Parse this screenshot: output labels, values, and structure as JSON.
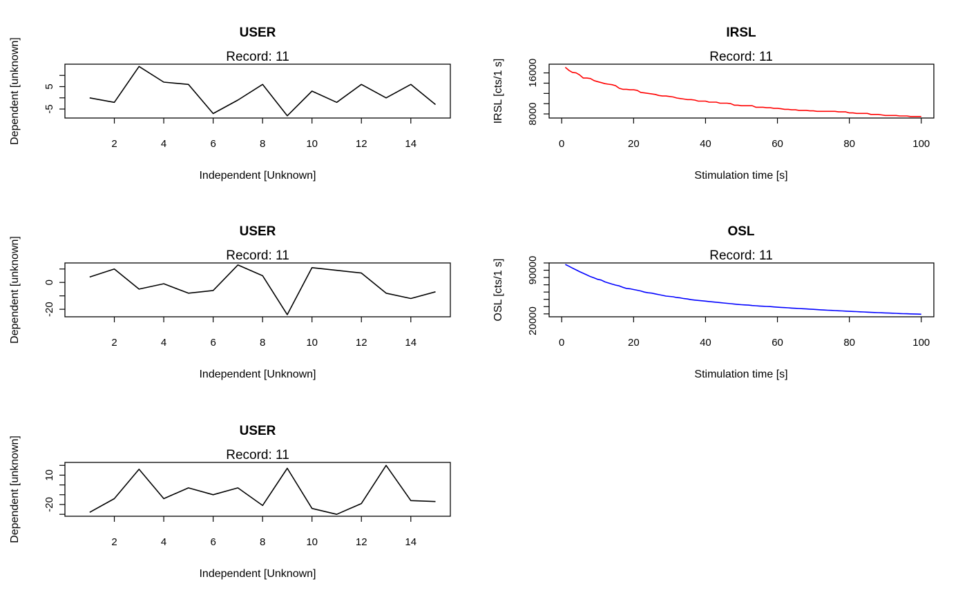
{
  "chart_data": [
    {
      "type": "line",
      "title": "USER",
      "subtitle": "Record: 11",
      "xlabel": "Independent [Unknown]",
      "ylabel": "Dependent [unknown]",
      "color": "#000000",
      "x": [
        1,
        2,
        3,
        4,
        5,
        6,
        7,
        8,
        9,
        10,
        11,
        12,
        13,
        14,
        15
      ],
      "y": [
        0,
        -2,
        14,
        7,
        6,
        -7,
        -1,
        6,
        -8,
        3,
        -2,
        6,
        0,
        6,
        -3
      ],
      "xlim": [
        0,
        15.6
      ],
      "ylim": [
        -9,
        15
      ],
      "xticks": [
        2,
        4,
        6,
        8,
        10,
        12,
        14
      ],
      "xtick_labels": [
        "2",
        "4",
        "6",
        "8",
        "10",
        "12",
        "14"
      ],
      "yticks": [
        -5,
        0,
        5,
        10
      ],
      "ytick_labels": [
        "-5",
        "",
        "5",
        ""
      ]
    },
    {
      "type": "line",
      "title": "IRSL",
      "subtitle": "Record: 11",
      "xlabel": "Stimulation time [s]",
      "ylabel": "IRSL [cts/1 s]",
      "color": "#ff0000",
      "x": [
        1,
        2,
        3,
        4,
        5,
        6,
        7,
        8,
        9,
        10,
        11,
        12,
        13,
        14,
        15,
        16,
        17,
        18,
        19,
        20,
        21,
        22,
        23,
        24,
        25,
        26,
        27,
        28,
        29,
        30,
        31,
        32,
        33,
        34,
        35,
        36,
        37,
        38,
        39,
        40,
        41,
        42,
        43,
        44,
        45,
        46,
        47,
        48,
        49,
        50,
        51,
        52,
        53,
        54,
        55,
        56,
        57,
        58,
        59,
        60,
        61,
        62,
        63,
        64,
        65,
        66,
        67,
        68,
        69,
        70,
        71,
        72,
        73,
        74,
        75,
        76,
        77,
        78,
        79,
        80,
        81,
        82,
        83,
        84,
        85,
        86,
        87,
        88,
        89,
        90,
        91,
        92,
        93,
        94,
        95,
        96,
        97,
        98,
        99,
        100
      ],
      "y": [
        17100,
        16500,
        16100,
        16000,
        15600,
        15000,
        15000,
        14900,
        14500,
        14300,
        14100,
        13900,
        13800,
        13700,
        13500,
        13000,
        12800,
        12800,
        12700,
        12700,
        12600,
        12200,
        12100,
        12000,
        11900,
        11800,
        11600,
        11500,
        11500,
        11400,
        11300,
        11100,
        11000,
        10900,
        10800,
        10800,
        10700,
        10500,
        10500,
        10500,
        10300,
        10300,
        10300,
        10100,
        10100,
        10100,
        10000,
        9700,
        9700,
        9600,
        9600,
        9600,
        9600,
        9300,
        9300,
        9300,
        9200,
        9200,
        9100,
        9100,
        9000,
        8900,
        8900,
        8800,
        8800,
        8700,
        8700,
        8700,
        8600,
        8600,
        8500,
        8500,
        8500,
        8500,
        8500,
        8500,
        8400,
        8400,
        8400,
        8200,
        8200,
        8100,
        8100,
        8100,
        8100,
        7900,
        7900,
        7900,
        7800,
        7700,
        7700,
        7700,
        7700,
        7600,
        7600,
        7600,
        7500,
        7500,
        7500,
        7500
      ],
      "xlim": [
        -3.5,
        103.5
      ],
      "ylim": [
        7200,
        17700
      ],
      "xticks": [
        0,
        20,
        40,
        60,
        80,
        100
      ],
      "xtick_labels": [
        "0",
        "20",
        "40",
        "60",
        "80",
        "100"
      ],
      "yticks": [
        8000,
        10000,
        12000,
        14000,
        16000
      ],
      "ytick_labels": [
        "8000",
        "",
        "",
        "",
        "16000"
      ]
    },
    {
      "type": "line",
      "title": "USER",
      "subtitle": "Record: 11",
      "xlabel": "Independent [Unknown]",
      "ylabel": "Dependent [unknown]",
      "color": "#000000",
      "x": [
        1,
        2,
        3,
        4,
        5,
        6,
        7,
        8,
        9,
        10,
        11,
        12,
        13,
        14,
        15
      ],
      "y": [
        4,
        10,
        -5,
        -1,
        -8,
        -6,
        13,
        5,
        -24,
        11,
        9,
        7,
        -8,
        -12,
        -7
      ],
      "xlim": [
        0,
        15.6
      ],
      "ylim": [
        -25.6,
        14.5
      ],
      "xticks": [
        2,
        4,
        6,
        8,
        10,
        12,
        14
      ],
      "xtick_labels": [
        "2",
        "4",
        "6",
        "8",
        "10",
        "12",
        "14"
      ],
      "yticks": [
        -20,
        -10,
        0,
        10
      ],
      "ytick_labels": [
        "-20",
        "",
        "0",
        ""
      ]
    },
    {
      "type": "line",
      "title": "OSL",
      "subtitle": "Record: 11",
      "xlabel": "Stimulation time [s]",
      "ylabel": "OSL [cts/1 s]",
      "color": "#0000ff",
      "x": [
        1,
        2,
        3,
        4,
        5,
        6,
        7,
        8,
        9,
        10,
        11,
        12,
        13,
        14,
        15,
        16,
        17,
        18,
        19,
        20,
        21,
        22,
        23,
        24,
        25,
        26,
        27,
        28,
        29,
        30,
        31,
        32,
        33,
        34,
        35,
        36,
        37,
        38,
        39,
        40,
        41,
        42,
        43,
        44,
        45,
        46,
        47,
        48,
        49,
        50,
        51,
        52,
        53,
        54,
        55,
        56,
        57,
        58,
        59,
        60,
        61,
        62,
        63,
        64,
        65,
        66,
        67,
        68,
        69,
        70,
        71,
        72,
        73,
        74,
        75,
        76,
        77,
        78,
        79,
        80,
        81,
        82,
        83,
        84,
        85,
        86,
        87,
        88,
        89,
        90,
        91,
        92,
        93,
        94,
        95,
        96,
        97,
        98,
        99,
        100
      ],
      "y": [
        98000,
        95500,
        93000,
        90500,
        88000,
        85800,
        83500,
        81200,
        79500,
        77500,
        76500,
        74000,
        72500,
        71000,
        69500,
        68500,
        66500,
        65000,
        64500,
        63500,
        62500,
        61500,
        60000,
        59000,
        58500,
        57500,
        56500,
        55500,
        54500,
        54000,
        53500,
        52500,
        52000,
        51000,
        50500,
        49500,
        49000,
        48500,
        48000,
        47500,
        47000,
        46500,
        46000,
        45500,
        45000,
        44500,
        44000,
        43500,
        43000,
        42600,
        42300,
        42000,
        41500,
        41200,
        40800,
        40500,
        40200,
        40000,
        39600,
        39200,
        38900,
        38600,
        38300,
        38000,
        37700,
        37400,
        37100,
        36800,
        36500,
        36200,
        35900,
        35600,
        35300,
        35000,
        34800,
        34500,
        34300,
        34100,
        33800,
        33500,
        33300,
        33100,
        32800,
        32600,
        32400,
        32100,
        31900,
        31700,
        31500,
        31300,
        31100,
        30900,
        30700,
        30500,
        30300,
        30200,
        30000,
        29900,
        29700,
        29500
      ],
      "xlim": [
        -3.5,
        103.5
      ],
      "ylim": [
        26000,
        100000
      ],
      "xticks": [
        0,
        20,
        40,
        60,
        80,
        100
      ],
      "xtick_labels": [
        "0",
        "20",
        "40",
        "60",
        "80",
        "100"
      ],
      "yticks": [
        30000,
        40000,
        50000,
        60000,
        70000,
        80000,
        90000,
        100000
      ],
      "ytick_labels": [
        "",
        "",
        "",
        "",
        "",
        "",
        "90000",
        ""
      ]
    },
    {
      "type": "line",
      "title": "USER",
      "subtitle": "Record: 11",
      "xlabel": "Independent [Unknown]",
      "ylabel": "Dependent [unknown]",
      "color": "#000000",
      "x": [
        1,
        2,
        3,
        4,
        5,
        6,
        7,
        8,
        9,
        10,
        11,
        12,
        13,
        14,
        15
      ],
      "y": [
        -28,
        -14,
        16,
        -14,
        -3,
        -10,
        -3,
        -21,
        17,
        -24,
        -30,
        -19,
        20,
        -16,
        -17
      ],
      "xlim": [
        0,
        15.6
      ],
      "ylim": [
        -32,
        23
      ],
      "xticks": [
        2,
        4,
        6,
        8,
        10,
        12,
        14
      ],
      "xtick_labels": [
        "2",
        "4",
        "6",
        "8",
        "10",
        "12",
        "14"
      ],
      "yticks": [
        -30,
        -20,
        -10,
        0,
        10,
        20
      ],
      "ytick_labels": [
        "",
        "-20",
        "",
        "",
        "10",
        ""
      ]
    }
  ],
  "extra_ytick_labels": {
    "panel2_bottom": "20000"
  }
}
